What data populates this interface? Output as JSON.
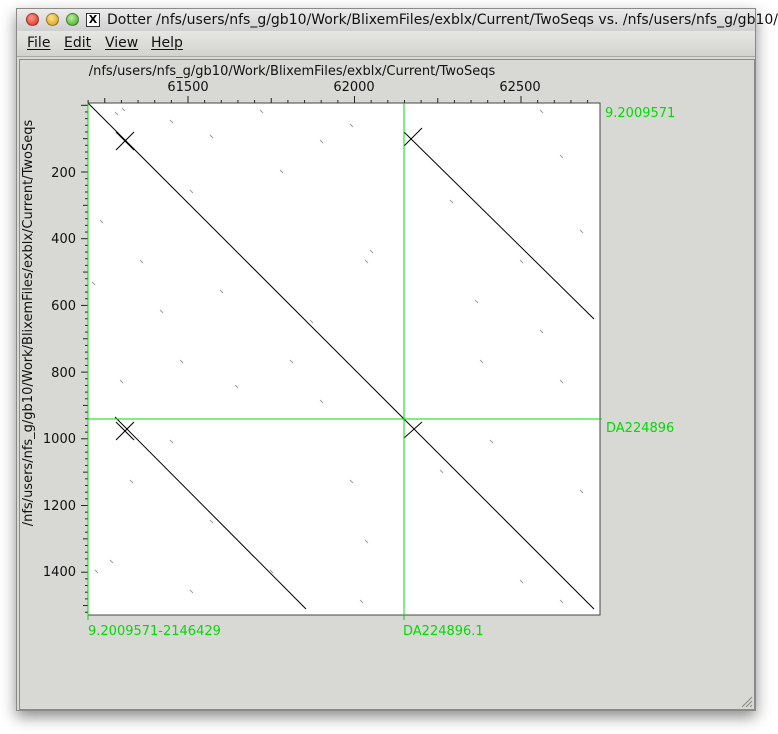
{
  "window": {
    "title": "Dotter /nfs/users/nfs_g/gb10/Work/BlixemFiles/exblx/Current/TwoSeqs vs. /nfs/users/nfs_g/gb10/"
  },
  "menu": {
    "file": "File",
    "edit": "Edit",
    "view": "View",
    "help": "Help"
  },
  "plot": {
    "horizontal_sequence": "/nfs/users/nfs_g/gb10/Work/BlixemFiles/exblx/Current/TwoSeqs",
    "vertical_sequence": "/nfs/users/nfs_g/gb10/Work/BlixemFiles/exblx/Current/TwoSeqs",
    "x_tick_labels": [
      "61500",
      "62000",
      "62500"
    ],
    "y_tick_labels": [
      "200",
      "400",
      "600",
      "800",
      "1000",
      "1200",
      "1400"
    ],
    "boundary_labels": {
      "right_top": "9.2009571",
      "right_middle": "DA224896",
      "bottom_left": "9.2009571-2146429",
      "bottom_middle": "DA224896.1"
    },
    "colors": {
      "boundary_line": "#00dd00",
      "diagonal": "#000000",
      "plot_bg": "#ffffff"
    }
  }
}
